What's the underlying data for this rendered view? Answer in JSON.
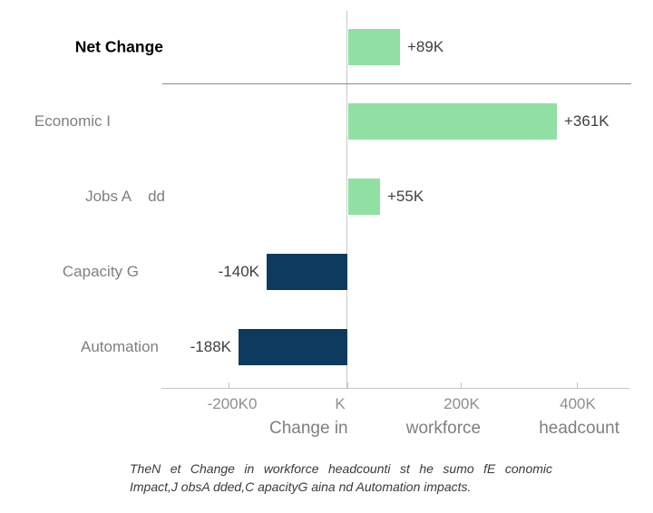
{
  "chart_data": {
    "type": "bar",
    "orientation": "horizontal",
    "xlabel": "Change in workforce headcount",
    "xlabel_parts": [
      "Change in",
      "workforce",
      "headcount"
    ],
    "x_ticks": [
      "-200K0",
      "K",
      "200K",
      "400K"
    ],
    "x_axis": {
      "units": "K",
      "tick_values": [
        -200,
        0,
        200,
        400
      ],
      "range_approx": [
        -320,
        490
      ]
    },
    "grid": "off",
    "colors": {
      "positive": "#8fe0a2",
      "negative": "#0e3a5e"
    },
    "rows": [
      {
        "label": "Net Change",
        "value": 89,
        "value_label": "+89K",
        "color": "#8fe0a2"
      },
      {
        "label": "Economic I",
        "value": 361,
        "value_label": "+361K",
        "color": "#8fe0a2"
      },
      {
        "label": "Jobs A    dd",
        "value": 55,
        "value_label": "+55K",
        "color": "#8fe0a2"
      },
      {
        "label": "Capacity G",
        "value": -140,
        "value_label": "-140K",
        "color": "#0e3a5e"
      },
      {
        "label": "Automation",
        "value": -188,
        "value_label": "-188K",
        "color": "#0e3a5e"
      }
    ]
  },
  "caption": {
    "line1": "TheN et Change in workforce headcounti st he sumo fE conomic",
    "line2": "Impact,J obsA dded,C apacityG aina nd Automation impacts."
  }
}
